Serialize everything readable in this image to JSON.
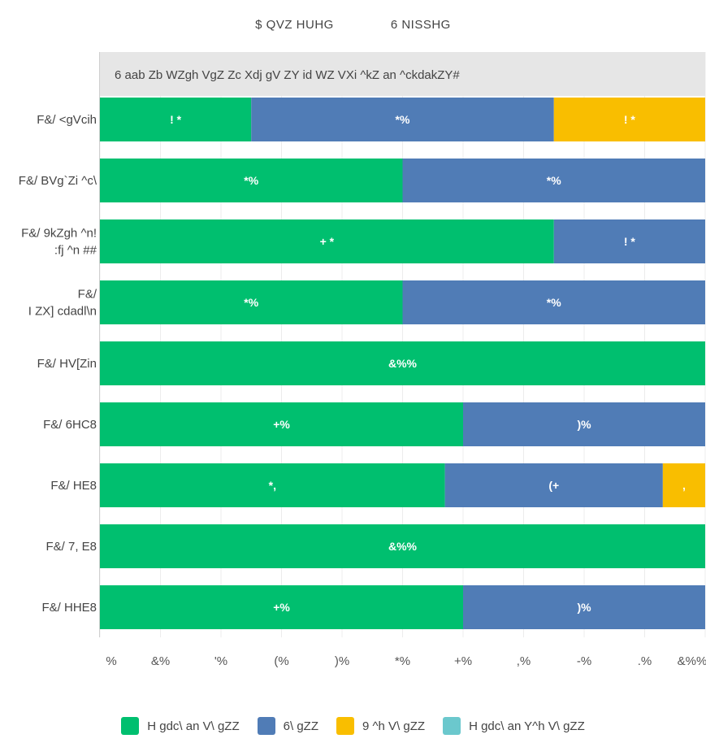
{
  "top_legend": [
    "$ QVZ HUHG",
    "6 NISSHG"
  ],
  "chart_data": {
    "type": "bar",
    "orientation": "horizontal",
    "stacked": true,
    "title": "6 aab Zb WZgh VgZ Zc Xdj gV ZY id WZ VXi ^kZ an ^ckdakZY#",
    "categories": [
      [
        "F&/ <gVcih"
      ],
      [
        "F&/ BVg`Zi ^c\\"
      ],
      [
        "F&/ 9kZgh ^n!",
        ":fj ^n ##"
      ],
      [
        "F&/",
        "I ZX] cdadl\\n"
      ],
      [
        "F&/ HV[Zin"
      ],
      [
        "F&/ 6HC8"
      ],
      [
        "F&/ HE8"
      ],
      [
        "F&/ 7, E8"
      ],
      [
        "F&/ HHE8"
      ]
    ],
    "series": [
      {
        "name": "H gdc\\ an V\\ gZZ",
        "color": "#00bf6f",
        "values": [
          25,
          50,
          75,
          50,
          100,
          60,
          57,
          100,
          60
        ]
      },
      {
        "name": "6\\ gZZ",
        "color": "#507cb6",
        "values": [
          50,
          50,
          25,
          50,
          0,
          40,
          36,
          0,
          40
        ]
      },
      {
        "name": "9 ^h V\\ gZZ",
        "color": "#f9be00",
        "values": [
          25,
          0,
          0,
          0,
          0,
          0,
          7,
          0,
          0
        ]
      },
      {
        "name": "H gdc\\ an Y^h V\\ gZZ",
        "color": "#6bc8cd",
        "values": [
          0,
          0,
          0,
          0,
          0,
          0,
          0,
          0,
          0
        ]
      }
    ],
    "data_labels": [
      [
        "! *",
        "*%",
        "! *"
      ],
      [
        "*%",
        "*%"
      ],
      [
        "+ *",
        "! *"
      ],
      [
        "*%",
        "*%"
      ],
      [
        "&%%"
      ],
      [
        "+%",
        ")%"
      ],
      [
        "*,",
        "(+",
        ","
      ],
      [
        "&%%"
      ],
      [
        "+%",
        ")%"
      ]
    ],
    "x_ticks": [
      "%",
      "&%",
      "'%",
      "(%",
      ")%",
      "*%",
      "+%",
      ",%",
      "-%",
      ".%",
      "&%%"
    ],
    "xlim": [
      0,
      100
    ],
    "grid": true,
    "legend_position": "bottom"
  }
}
